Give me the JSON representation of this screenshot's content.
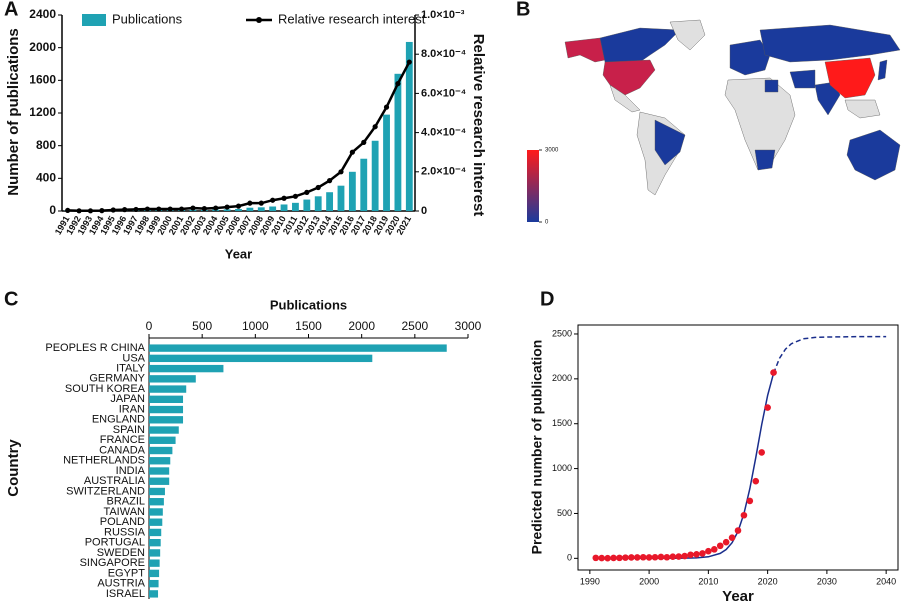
{
  "chart_data": [
    {
      "type": "bar_line",
      "label": "A",
      "categories": [
        "1991",
        "1992",
        "1993",
        "1994",
        "1995",
        "1996",
        "1997",
        "1998",
        "1999",
        "2000",
        "2001",
        "2002",
        "2003",
        "2004",
        "2005",
        "2006",
        "2007",
        "2008",
        "2009",
        "2010",
        "2011",
        "2012",
        "2013",
        "2014",
        "2015",
        "2016",
        "2017",
        "2018",
        "2019",
        "2020",
        "2021"
      ],
      "series": [
        {
          "name": "Publications",
          "color": "#1fa2b3",
          "values": [
            5,
            3,
            2,
            4,
            5,
            8,
            10,
            10,
            12,
            10,
            12,
            15,
            12,
            18,
            20,
            25,
            40,
            45,
            55,
            80,
            100,
            140,
            180,
            230,
            310,
            480,
            640,
            860,
            1180,
            1680,
            2070
          ]
        },
        {
          "name": "Relative research interest",
          "color": "#000000",
          "axis": "y2",
          "values": [
            3e-06,
            1e-06,
            1e-06,
            2e-06,
            5e-06,
            7e-06,
            8e-06,
            1e-05,
            1e-05,
            1e-05,
            1e-05,
            1.5e-05,
            1.2e-05,
            1.5e-05,
            2e-05,
            2.5e-05,
            4e-05,
            4e-05,
            5.5e-05,
            6.5e-05,
            7.5e-05,
            9.5e-05,
            0.00012,
            0.000155,
            0.0002,
            0.0003,
            0.00035,
            0.00043,
            0.00053,
            0.00065,
            0.00076
          ]
        }
      ],
      "xlabel": "Year",
      "ylabel": "Number of publications",
      "y2label": "Relative research interest",
      "ylim": [
        0,
        2400
      ],
      "yticks": [
        0,
        400,
        800,
        1200,
        1600,
        2000,
        2400
      ],
      "y2lim": [
        0,
        0.001
      ],
      "y2ticks": [
        {
          "value": 0,
          "label": "0"
        },
        {
          "value": 0.0002,
          "label": "2.0×10⁻⁴"
        },
        {
          "value": 0.0004,
          "label": "4.0×10⁻⁴"
        },
        {
          "value": 0.0006,
          "label": "6.0×10⁻⁴"
        },
        {
          "value": 0.0008,
          "label": "8.0×10⁻⁴"
        },
        {
          "value": 0.001,
          "label": "1.0×10⁻³"
        }
      ]
    },
    {
      "type": "map",
      "label": "B",
      "colorbar": {
        "ticks": [
          0,
          3000
        ],
        "colors": [
          "#1a3a9c",
          "#ff1a1a"
        ]
      }
    },
    {
      "type": "hbar",
      "label": "C",
      "categories": [
        "PEOPLES R CHINA",
        "USA",
        "ITALY",
        "GERMANY",
        "SOUTH KOREA",
        "JAPAN",
        "IRAN",
        "ENGLAND",
        "SPAIN",
        "FRANCE",
        "CANADA",
        "NETHERLANDS",
        "INDIA",
        "AUSTRALIA",
        "SWITZERLAND",
        "BRAZIL",
        "TAIWAN",
        "POLAND",
        "RUSSIA",
        "PORTUGAL",
        "SWEDEN",
        "SINGAPORE",
        "EGYPT",
        "AUSTRIA",
        "ISRAEL"
      ],
      "values": [
        2800,
        2100,
        700,
        440,
        350,
        320,
        320,
        320,
        280,
        250,
        220,
        200,
        190,
        190,
        150,
        140,
        130,
        125,
        115,
        110,
        105,
        100,
        95,
        90,
        85
      ],
      "color": "#1fa2b3",
      "xlabel": "Publications",
      "ylabel": "Country",
      "xlim": [
        0,
        3000
      ],
      "xticks": [
        0,
        500,
        1000,
        1500,
        2000,
        2500,
        3000
      ]
    },
    {
      "type": "scatter_fit",
      "label": "D",
      "xlabel": "Year",
      "ylabel": "Predicted number of publication",
      "xlim": [
        1988,
        2042
      ],
      "xticks": [
        1990,
        2000,
        2010,
        2020,
        2030,
        2040
      ],
      "ylim": [
        -130,
        2600
      ],
      "yticks": [
        0,
        500,
        1000,
        1500,
        2000,
        2500
      ],
      "points": {
        "color": "#e8182a",
        "x": [
          1991,
          1992,
          1993,
          1994,
          1995,
          1996,
          1997,
          1998,
          1999,
          2000,
          2001,
          2002,
          2003,
          2004,
          2005,
          2006,
          2007,
          2008,
          2009,
          2010,
          2011,
          2012,
          2013,
          2014,
          2015,
          2016,
          2017,
          2018,
          2019,
          2020,
          2021
        ],
        "values": [
          5,
          3,
          2,
          4,
          5,
          8,
          10,
          10,
          12,
          10,
          12,
          15,
          12,
          18,
          20,
          25,
          40,
          45,
          55,
          80,
          100,
          140,
          180,
          230,
          310,
          480,
          640,
          860,
          1180,
          1680,
          2070
        ]
      },
      "series": [
        {
          "color": "#1a2e8c",
          "dash": false,
          "x": [
            1991,
            1995,
            2000,
            2005,
            2008,
            2010,
            2012,
            2013,
            2014,
            2015,
            2016,
            2017,
            2018,
            2019,
            2020,
            2021
          ],
          "values": [
            0,
            0,
            1,
            1,
            5,
            17,
            55,
            98,
            174,
            300,
            497,
            777,
            1123,
            1490,
            1815,
            2062
          ]
        },
        {
          "color": "#1a2e8c",
          "dash": true,
          "x": [
            2021,
            2022,
            2023,
            2024,
            2026,
            2028,
            2030,
            2035,
            2040
          ],
          "values": [
            2062,
            2228,
            2330,
            2391,
            2446,
            2462,
            2466,
            2470,
            2470
          ]
        }
      ]
    }
  ]
}
